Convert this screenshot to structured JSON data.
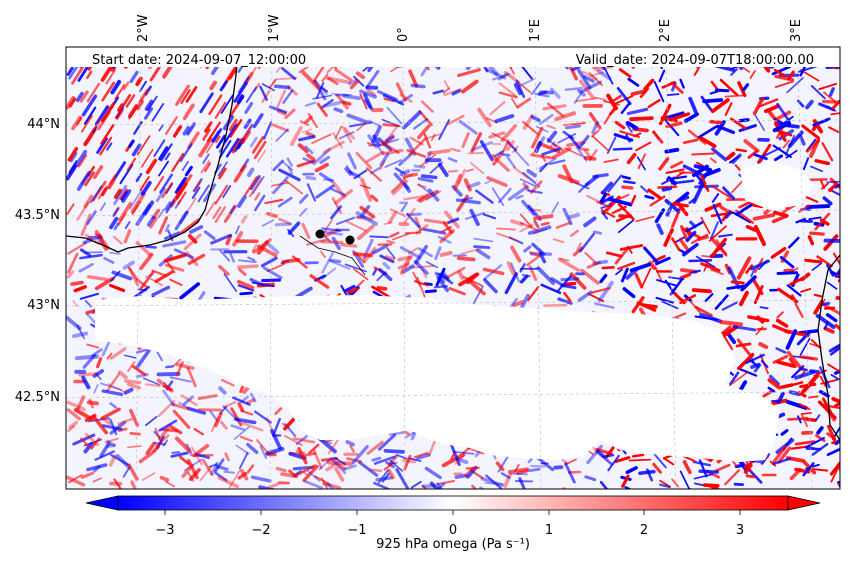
{
  "header": {
    "start_date": "Start date: 2024-09-07_12:00:00",
    "valid_date": "Valid_date: 2024-09-07T18:00:00.00"
  },
  "map": {
    "lon_labels": [
      "2°W",
      "1°W",
      "0°",
      "1°E",
      "2°E",
      "3°E"
    ],
    "lat_labels": [
      "44°N",
      "43.5°N",
      "43°N",
      "42.5°N"
    ],
    "points": [
      {
        "lon": -0.62,
        "lat": 43.38
      },
      {
        "lon": -0.39,
        "lat": 43.35
      }
    ]
  },
  "colorbar": {
    "label": "925 hPa omega (Pa s⁻¹)",
    "ticks": [
      "−3",
      "−2",
      "−1",
      "0",
      "1",
      "2",
      "3"
    ],
    "vmin": -3.6,
    "vmax": 3.6,
    "colors": {
      "low": "#0000ff",
      "mid": "#ffffff",
      "high": "#ff0000"
    }
  }
}
